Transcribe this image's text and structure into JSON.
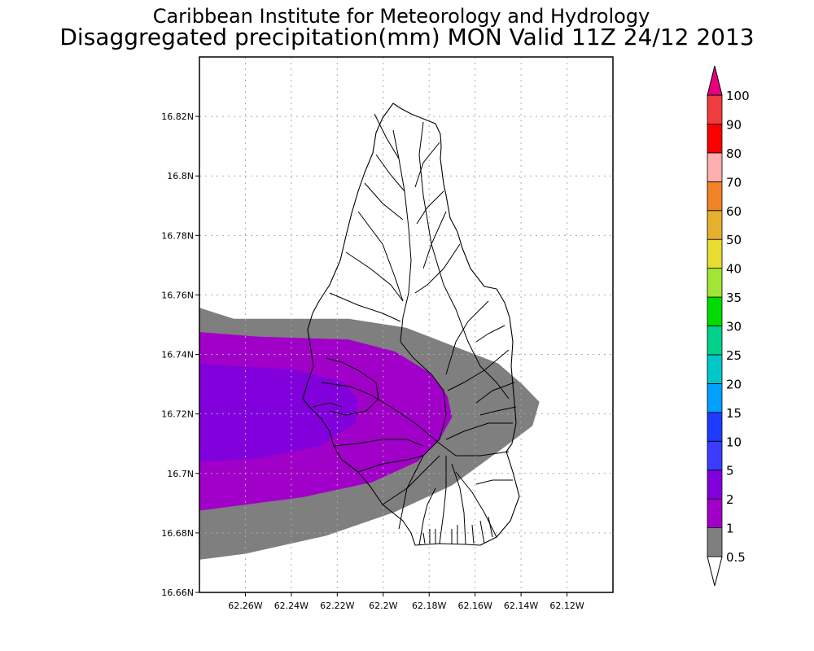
{
  "title": {
    "line1": "Caribbean Institute for Meteorology and Hydrology",
    "line2": "Disaggregated precipitation(mm) MON Valid 11Z 24/12 2013"
  },
  "chart_data": {
    "type": "map-contour",
    "variable": "Disaggregated precipitation(mm)",
    "region": "MON",
    "valid_time": "11Z 24/12 2013",
    "lon_range": [
      -62.28,
      -62.1
    ],
    "lat_range": [
      16.66,
      16.84
    ],
    "x_ticks": [
      "62.26W",
      "62.24W",
      "62.22W",
      "62.2W",
      "62.18W",
      "62.16W",
      "62.14W",
      "62.12W"
    ],
    "x_tick_values": [
      -62.26,
      -62.24,
      -62.22,
      -62.2,
      -62.18,
      -62.16,
      -62.14,
      -62.12
    ],
    "y_ticks": [
      "16.66N",
      "16.68N",
      "16.7N",
      "16.72N",
      "16.74N",
      "16.76N",
      "16.78N",
      "16.8N",
      "16.82N"
    ],
    "y_tick_values": [
      16.66,
      16.68,
      16.7,
      16.72,
      16.74,
      16.76,
      16.78,
      16.8,
      16.82
    ],
    "grid": true,
    "colorbar": {
      "labels": [
        "0.5",
        "1",
        "2",
        "5",
        "10",
        "15",
        "20",
        "25",
        "30",
        "35",
        "40",
        "50",
        "60",
        "70",
        "80",
        "90",
        "100"
      ],
      "colors": [
        "#7f7f7f",
        "#a000c8",
        "#8200dc",
        "#3c3cff",
        "#1e3cff",
        "#00a0ff",
        "#00c8c8",
        "#00d28c",
        "#00dc00",
        "#a0e632",
        "#e6dc32",
        "#e6af2d",
        "#f08228",
        "#ffafaf",
        "#fa0000",
        "#f03c3c",
        "#e6007f"
      ]
    },
    "contour_fields": [
      {
        "level": 0.5,
        "color": "#7f7f7f",
        "polygon": [
          [
            -62.28,
            16.7557
          ],
          [
            -62.265,
            16.752
          ],
          [
            -62.215,
            16.752
          ],
          [
            -62.19,
            16.749
          ],
          [
            -62.17,
            16.743
          ],
          [
            -62.15,
            16.737
          ],
          [
            -62.1395,
            16.73
          ],
          [
            -62.132,
            16.724
          ],
          [
            -62.135,
            16.716
          ],
          [
            -62.147,
            16.709
          ],
          [
            -62.17,
            16.696
          ],
          [
            -62.195,
            16.687
          ],
          [
            -62.225,
            16.679
          ],
          [
            -62.26,
            16.673
          ],
          [
            -62.28,
            16.671
          ]
        ]
      },
      {
        "level": 1,
        "color": "#a000c8",
        "polygon": [
          [
            -62.28,
            16.7475
          ],
          [
            -62.255,
            16.746
          ],
          [
            -62.215,
            16.745
          ],
          [
            -62.195,
            16.741
          ],
          [
            -62.18,
            16.734
          ],
          [
            -62.172,
            16.726
          ],
          [
            -62.17,
            16.719
          ],
          [
            -62.175,
            16.712
          ],
          [
            -62.185,
            16.704
          ],
          [
            -62.205,
            16.697
          ],
          [
            -62.235,
            16.692
          ],
          [
            -62.28,
            16.6875
          ]
        ]
      },
      {
        "level": 2,
        "color": "#8200dc",
        "polygon": [
          [
            -62.28,
            16.7368
          ],
          [
            -62.24,
            16.735
          ],
          [
            -62.218,
            16.731
          ],
          [
            -62.211,
            16.725
          ],
          [
            -62.212,
            16.717
          ],
          [
            -62.228,
            16.709
          ],
          [
            -62.255,
            16.705
          ],
          [
            -62.28,
            16.7038
          ]
        ]
      }
    ]
  }
}
